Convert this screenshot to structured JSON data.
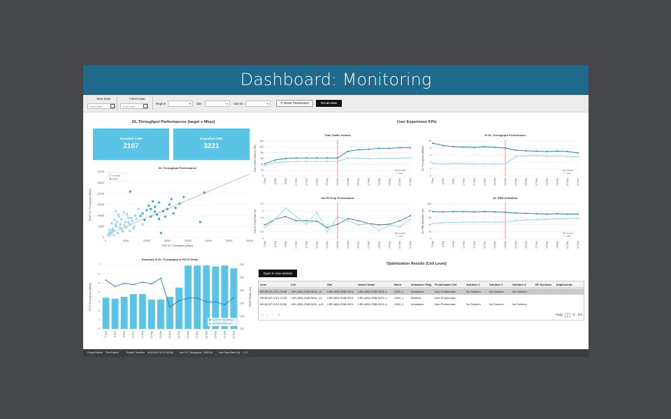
{
  "window": {
    "title": "Dashboard: Monitoring"
  },
  "filters": {
    "start_date_label": "Start Date",
    "start_date_placeholder": "Enter date",
    "finish_date_label": "Finish Date",
    "finish_date_placeholder": "Enter date",
    "region_label": "Region",
    "site_label": "Site",
    "site_id_label": "Site ID",
    "reset_label": "Reset Parameters",
    "recalc_label": "Recalculate"
  },
  "dl_perf": {
    "title": "DL Throughput Performances (target x Mbps)",
    "resolved_label": "Resolved Cells",
    "resolved_value": "2107",
    "degraded_label": "Degraded Cells",
    "degraded_value": "3221"
  },
  "ux": {
    "title": "User Experience KPIs"
  },
  "optimization": {
    "title": "Optimization Results (Cell Level)",
    "open_label": "Open in new window",
    "columns": [
      "Area",
      "Cell",
      "Site",
      "Sector Name",
      "Band",
      "Imbalance Flag",
      "Problematic Cell",
      "Solution 1",
      "Solution 2",
      "Solution 3",
      "RF Decision",
      "Implementa"
    ],
    "rows": [
      [
        "BR-BGLP-ICE1-0198",
        "I-BR-ABIL-ENB-9001_c0",
        "I-BR-ABIL-ENB-9001",
        "I-BR-ABIL-ENB-9001-1",
        "2300_1",
        "Imbalance",
        "Non-Problematic",
        "No Solution",
        "No Solution",
        "No Solution",
        "",
        ""
      ],
      [
        "BR-BGLP-ICE1-0198",
        "I-BR-ABIL-ENB-9001_c1",
        "I-BR-ABIL-ENB-9001",
        "I-BR-ABIL-ENB-9001-1",
        "2300_1",
        "Balance",
        "Non-Problematic",
        "",
        "",
        "",
        "",
        ""
      ],
      [
        "BR-BGLP-ICE1-0198",
        "I-BR-ABIL-ENB-9001_c13",
        "I-BR-ABIL-ENB-9001",
        "I-BR-ABIL-ENB-9001-4",
        "2300_1",
        "Imbalance",
        "Non-Problematic",
        "No Solution",
        "No Solution",
        "No Solution",
        "",
        ""
      ]
    ],
    "pager": {
      "first": "«",
      "prev": "‹",
      "next": "›",
      "last": "»",
      "page_label": "Page",
      "page_value": "1",
      "of_label": "of",
      "total_pages": "101"
    }
  },
  "status_bar": {
    "project_name_label": "Project Name:",
    "project_name_value": "Test Project",
    "timeline_label": "Project Timeline:",
    "timeline_value": "9/11/2022 00:21:00 AM",
    "avg_dl_label": "Ave DL Throughput:",
    "avg_dl_value": "2000.00",
    "avg_drop_label": "Ave Drop Rate (%):",
    "avg_drop_value": "1.74"
  },
  "colors": {
    "title_bar": "#1f6a8c",
    "accent": "#5bc4e6",
    "dark_line": "#1f7fb0",
    "light_line": "#8fd3ef",
    "ref_line": "#e05050",
    "background": "#45474b"
  },
  "chart_data": [
    {
      "type": "scatter",
      "title": "DL Throughput Performance",
      "xlabel": "PRE DL Throughput (Mbps)",
      "ylabel": "POST DL Throughput (Mbps)",
      "x_ticks": [
        "0",
        "5000",
        "10000",
        "15000",
        "20000",
        "25000",
        "30000",
        "35000"
      ],
      "y_ticks": [
        "0",
        "5000",
        "10000",
        "15000",
        "20000",
        "25000",
        "30000"
      ],
      "xlim": [
        0,
        35000
      ],
      "ylim": [
        0,
        30000
      ],
      "series": [
        {
          "name": "Downlift",
          "points": [
            [
              1200,
              1500
            ],
            [
              2000,
              3000
            ],
            [
              2600,
              5000
            ],
            [
              3200,
              9500
            ],
            [
              1500,
              2500
            ],
            [
              800,
              900
            ],
            [
              4000,
              3500
            ],
            [
              5000,
              4500
            ],
            [
              6000,
              6000
            ],
            [
              7000,
              5000
            ],
            [
              3600,
              6000
            ],
            [
              4400,
              11500
            ],
            [
              2200,
              8000
            ],
            [
              1800,
              4000
            ],
            [
              5500,
              9000
            ],
            [
              6500,
              7500
            ],
            [
              3000,
              2000
            ],
            [
              4800,
              7000
            ],
            [
              7500,
              8500
            ],
            [
              2500,
              12000
            ],
            [
              1500,
              6500
            ],
            [
              1000,
              3500
            ],
            [
              8000,
              13000
            ],
            [
              5200,
              10500
            ],
            [
              4200,
              2800
            ],
            [
              2800,
              7000
            ],
            [
              6800,
              4000
            ],
            [
              3500,
              4500
            ],
            [
              9000,
              6000
            ],
            [
              2000,
              1000
            ],
            [
              1700,
              3200
            ],
            [
              3800,
              8200
            ],
            [
              4600,
              5600
            ],
            [
              5900,
              3000
            ],
            [
              7200,
              10000
            ],
            [
              2400,
              5800
            ],
            [
              3100,
              10500
            ],
            [
              900,
              2200
            ],
            [
              6200,
              8800
            ],
            [
              5600,
              6800
            ]
          ]
        },
        {
          "name": "Uplift",
          "points": [
            [
              9000,
              11000
            ],
            [
              11000,
              9500
            ],
            [
              12000,
              14000
            ],
            [
              14000,
              12000
            ],
            [
              13000,
              16000
            ],
            [
              15000,
              13000
            ],
            [
              16000,
              17500
            ],
            [
              10000,
              12500
            ],
            [
              12500,
              10500
            ],
            [
              18000,
              15500
            ],
            [
              11500,
              16500
            ],
            [
              9500,
              8000
            ],
            [
              14500,
              9500
            ],
            [
              17000,
              13500
            ],
            [
              24000,
              20500
            ],
            [
              13500,
              2000
            ],
            [
              23000,
              7000
            ],
            [
              6000,
              21000
            ],
            [
              10500,
              14500
            ],
            [
              12000,
              11800
            ],
            [
              15500,
              15000
            ],
            [
              8500,
              9800
            ],
            [
              19000,
              18500
            ],
            [
              16500,
              11000
            ],
            [
              11000,
              13000
            ],
            [
              13000,
              8500
            ]
          ]
        }
      ],
      "trendline": [
        [
          0,
          1000
        ],
        [
          35000,
          29000
        ]
      ],
      "legend": [
        "Downlift",
        "Uplift"
      ],
      "legend_position": "top-left"
    },
    {
      "type": "bar+line",
      "title": "Downlink IP DL Throughput & PDCP Delay",
      "categories": [
        "7-Sep",
        "8-Sep",
        "9-Sep",
        "10-Sep",
        "11-Sep",
        "12-Sep",
        "13-Sep",
        "14-Sep",
        "15-Sep",
        "16-Sep",
        "17-Sep",
        "18-Sep",
        "19-Sep",
        "20-Sep",
        "21-Sep"
      ],
      "ylabel": "IP DL Throughput (Mbps)",
      "y2label": "PDCP Delay (ms)",
      "y_ticks": [
        "0",
        "1",
        "2",
        "3",
        "4",
        "5",
        "6",
        "7"
      ],
      "y2_ticks": [
        "120",
        "140",
        "160",
        "180",
        "200",
        "220"
      ],
      "ylim": [
        0,
        7
      ],
      "y2lim": [
        120,
        220
      ],
      "series": [
        {
          "name": "Ave IP DL Thrpt (Mbps)",
          "type": "bar",
          "values": [
            3.4,
            3.3,
            3.5,
            3.8,
            3.8,
            3.2,
            3.2,
            3.5,
            4.5,
            6.9,
            6.9,
            6.9,
            6.8,
            6.9,
            6.6
          ]
        },
        {
          "name": "Ave PDCP Delay (ms)",
          "type": "line",
          "values": [
            196,
            186,
            191,
            189,
            193,
            190,
            199,
            154,
            164,
            168,
            168,
            162,
            162,
            158,
            168
          ]
        }
      ],
      "legend": [
        "Ave IP DL Thrpt (Mbps)",
        "Ave PDCP Delay (ms)"
      ],
      "legend_position": "bottom-right"
    },
    {
      "type": "line",
      "title": "Total Traffic Volume",
      "ylabel": "Total Traffic Volume (GB)",
      "categories": [
        "7-Sep",
        "8-Sep",
        "9-Sep",
        "10-Sep",
        "11-Sep",
        "12-Sep",
        "13-Sep",
        "14-Sep",
        "15-Sep",
        "16-Sep",
        "17-Sep",
        "18-Sep",
        "19-Sep",
        "20-Sep",
        "21-Sep"
      ],
      "y_ticks": [
        "0",
        "20",
        "40",
        "60",
        "80",
        "100",
        "120"
      ],
      "ylim": [
        0,
        120
      ],
      "series": [
        {
          "name": "Downlift",
          "values": [
            42,
            55,
            60,
            62,
            62,
            62,
            62,
            62,
            85,
            90,
            92,
            95,
            95,
            97,
            97
          ]
        },
        {
          "name": "Uplift",
          "values": [
            36,
            46,
            48,
            50,
            50,
            50,
            50,
            50,
            62,
            62,
            60,
            60,
            61,
            61,
            62
          ]
        }
      ],
      "reference_category": "14-Sep",
      "legend": [
        "Downlift",
        "Uplift"
      ],
      "legend_position": "bottom-right"
    },
    {
      "type": "line",
      "title": "IP DL Throughput Performance",
      "ylabel": "DL Throughput (Mbps)",
      "categories": [
        "7-Sep",
        "8-Sep",
        "9-Sep",
        "10-Sep",
        "11-Sep",
        "12-Sep",
        "13-Sep",
        "14-Sep",
        "15-Sep",
        "16-Sep",
        "17-Sep",
        "18-Sep",
        "19-Sep",
        "20-Sep",
        "21-Sep"
      ],
      "y_ticks": [
        "0",
        "2",
        "4",
        "6",
        "8",
        "10"
      ],
      "ylim": [
        0,
        10
      ],
      "series": [
        {
          "name": "Downlift",
          "values": [
            9.4,
            8.7,
            8.4,
            8.3,
            8.2,
            8.4,
            8.2,
            8.0,
            7.4,
            7.2,
            7.1,
            7.0,
            7.1,
            7.0,
            6.6
          ]
        },
        {
          "name": "Uplift",
          "values": [
            3.6,
            3.4,
            3.6,
            3.5,
            3.4,
            3.5,
            3.4,
            3.5,
            5.6,
            5.8,
            5.8,
            5.7,
            5.7,
            5.6,
            5.4
          ]
        }
      ],
      "reference_category": "14-Sep",
      "legend": [
        "Downlift",
        "Uplift"
      ],
      "legend_position": "bottom-right"
    },
    {
      "type": "line",
      "title": "VoLTE Drop Performance",
      "ylabel": "VoLTE Drop Rate (%)",
      "categories": [
        "7-Sep",
        "8-Sep",
        "9-Sep",
        "10-Sep",
        "11-Sep",
        "12-Sep",
        "13-Sep",
        "14-Sep",
        "15-Sep",
        "16-Sep",
        "17-Sep",
        "18-Sep",
        "19-Sep",
        "20-Sep",
        "21-Sep"
      ],
      "y_ticks": [
        "0",
        "0.5",
        "1",
        "1.5",
        "2",
        "2.5"
      ],
      "ylim": [
        0,
        2.5
      ],
      "series": [
        {
          "name": "Downlift",
          "values": [
            1.0,
            1.4,
            1.6,
            1.3,
            1.3,
            1.25,
            0.8,
            1.05,
            1.45,
            1.3,
            1.1,
            1.0,
            1.05,
            1.3,
            1.65
          ]
        },
        {
          "name": "Uplift",
          "values": [
            0.8,
            1.4,
            2.2,
            1.6,
            1.05,
            1.9,
            0.5,
            1.6,
            1.3,
            1.0,
            1.1,
            0.6,
            1.0,
            0.85,
            1.4
          ]
        }
      ],
      "reference_category": "14-Sep",
      "legend": [
        "Downlift",
        "Uplift"
      ],
      "legend_position": "bottom-right"
    },
    {
      "type": "line",
      "title": "DL PRB Utilization",
      "ylabel": "DL PRB Utilization (%)",
      "categories": [
        "7-Sep",
        "8-Sep",
        "9-Sep",
        "10-Sep",
        "11-Sep",
        "12-Sep",
        "13-Sep",
        "14-Sep",
        "15-Sep",
        "16-Sep",
        "17-Sep",
        "18-Sep",
        "19-Sep",
        "20-Sep",
        "21-Sep"
      ],
      "y_ticks": [
        "0",
        "20",
        "40",
        "60",
        "80",
        "100"
      ],
      "ylim": [
        0,
        100
      ],
      "series": [
        {
          "name": "Downlift",
          "values": [
            78,
            77,
            78,
            78,
            77,
            78,
            77,
            76,
            74,
            73,
            72,
            71,
            72,
            71,
            71
          ]
        },
        {
          "name": "Uplift",
          "values": [
            44,
            46,
            47,
            48,
            48,
            48,
            48,
            48,
            52,
            54,
            55,
            56,
            57,
            58,
            58
          ]
        }
      ],
      "reference_category": "14-Sep",
      "legend": [
        "Downlift",
        "Uplift"
      ],
      "legend_position": "bottom-right"
    }
  ]
}
